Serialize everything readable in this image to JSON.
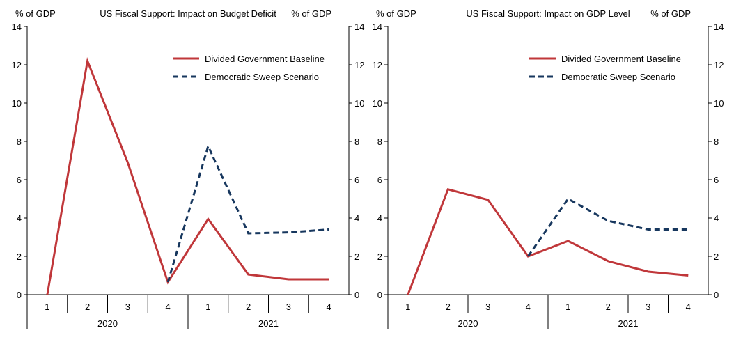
{
  "chart_data": [
    {
      "type": "line",
      "title": "US Fiscal Support: Impact on Budget Deficit",
      "ylabel_left": "% of GDP",
      "ylabel_right": "% of GDP",
      "ylim": [
        0,
        14
      ],
      "yticks": [
        0,
        2,
        4,
        6,
        8,
        10,
        12,
        14
      ],
      "categories": [
        "1",
        "2",
        "3",
        "4",
        "1",
        "2",
        "3",
        "4"
      ],
      "groups": [
        {
          "label": "2020",
          "start": 0,
          "count": 4
        },
        {
          "label": "2021",
          "start": 4,
          "count": 4
        }
      ],
      "legend_position": "top-right",
      "series": [
        {
          "name": "Divided Government Baseline",
          "color": "#c0373a",
          "style": "solid",
          "values": [
            0,
            12.2,
            6.9,
            0.65,
            3.95,
            1.05,
            0.8,
            0.8
          ]
        },
        {
          "name": "Democratic Sweep Scenario",
          "color": "#17375e",
          "style": "dashed",
          "values": [
            null,
            null,
            null,
            0.65,
            7.75,
            3.2,
            3.25,
            3.4
          ]
        }
      ]
    },
    {
      "type": "line",
      "title": "US Fiscal Support: Impact on GDP Level",
      "ylabel_left": "% of GDP",
      "ylabel_right": "% of GDP",
      "ylim": [
        0,
        14
      ],
      "yticks": [
        0,
        2,
        4,
        6,
        8,
        10,
        12,
        14
      ],
      "categories": [
        "1",
        "2",
        "3",
        "4",
        "1",
        "2",
        "3",
        "4"
      ],
      "groups": [
        {
          "label": "2020",
          "start": 0,
          "count": 4
        },
        {
          "label": "2021",
          "start": 4,
          "count": 4
        }
      ],
      "legend_position": "top-right",
      "series": [
        {
          "name": "Divided Government Baseline",
          "color": "#c0373a",
          "style": "solid",
          "values": [
            0,
            5.5,
            4.95,
            2.0,
            2.8,
            1.75,
            1.2,
            1.0
          ]
        },
        {
          "name": "Democratic Sweep Scenario",
          "color": "#17375e",
          "style": "dashed",
          "values": [
            null,
            null,
            null,
            2.0,
            5.0,
            3.85,
            3.4,
            3.4
          ]
        }
      ]
    }
  ]
}
